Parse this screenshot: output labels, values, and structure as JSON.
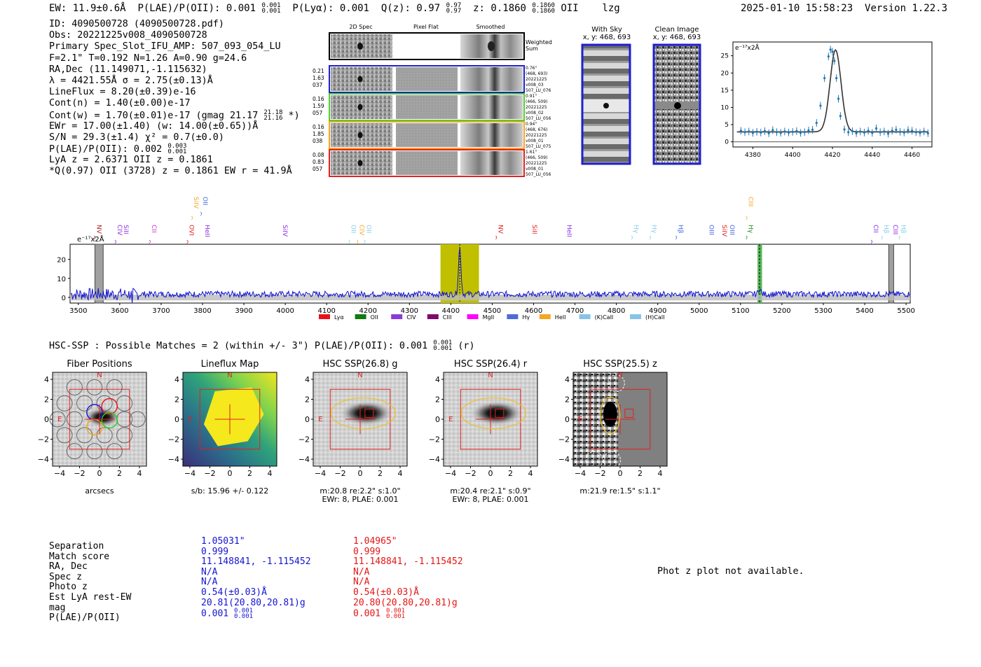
{
  "header": {
    "ew": "EW: 11.9±0.6Å",
    "plae_label": "P(LAE)/P(OII): 0.001",
    "plae_hi": "0.001",
    "plae_lo": "0.001",
    "plya": "P(Lyα): 0.001",
    "qz_label": "Q(z): 0.97",
    "qz_hi": "0.97",
    "qz_lo": "0.97",
    "z_label": "z: 0.1860",
    "z_hi": "0.1860",
    "z_lo": "0.1860",
    "line": "OII",
    "user": "lzg",
    "timestamp": "2025-01-10 15:58:23",
    "version": "Version 1.22.3"
  },
  "info": {
    "lines": [
      "ID: 4090500728 (4090500728.pdf)",
      "Obs: 20221225v008_4090500728",
      "Primary Spec_Slot_IFU_AMP: 507_093_054_LU",
      "F=2.1\"  T=0.192  N=1.26  A=0.90  g=24.6",
      "RA,Dec (11.149071,-1.115632)",
      "λ = 4421.55Å  σ = 2.75(±0.13)Å",
      "LineFlux = 8.20(±0.39)e-16",
      "Cont(n) = 1.40(±0.00)e-17"
    ],
    "contw": "Cont(w) = 1.70(±0.01)e-17 (gmag 21.17",
    "contw_hi": "21.18",
    "contw_lo": "21.16",
    "contw_end": "*)",
    "ewr": "EWr = 17.00(±1.40) (w: 14.00(±0.65))Å",
    "sn": "S/N = 29.3(±1.4)  χ² = 0.7(±0.0)",
    "plae": "P(LAE)/P(OII): 0.002",
    "plae_hi": "0.003",
    "plae_lo": "0.001",
    "lya": "LyA z = 2.6371  OII z = 0.1861",
    "q": "*Q(0.97) OII (3728) z = 0.1861  EW r = 41.9Å"
  },
  "stamps": {
    "col_titles": [
      "2D Spec",
      "Pixel Flat",
      "Smoothed"
    ],
    "weighted_sum": [
      "Weighted",
      "Sum"
    ],
    "rows": [
      {
        "left": [
          "0.21",
          "1.63",
          "037"
        ],
        "right": [
          "0.76\"",
          "(468, 693)",
          "20221225",
          "v008_03",
          "507_LU_076"
        ],
        "color": "#1f1fd0"
      },
      {
        "left": [
          "0.16",
          "1.59",
          "057"
        ],
        "right": [
          "0.91\"",
          "(466, 509)",
          "20221225",
          "v008_02",
          "507_LU_056"
        ],
        "color": "#4fd02a"
      },
      {
        "left": [
          "0.16",
          "1.85",
          "038"
        ],
        "right": [
          "0.94\"",
          "(468, 676)",
          "20221225",
          "v008_01",
          "507_LU_075"
        ],
        "color": "#f5a623"
      },
      {
        "left": [
          "0.08",
          "0.83",
          "057"
        ],
        "right": [
          "1.61\"",
          "(466, 509)",
          "20221225",
          "v008_01",
          "507_LU_056"
        ],
        "color": "#e02020"
      }
    ]
  },
  "sky_panels": [
    {
      "title": "With Sky",
      "coords": "x, y: 468, 693"
    },
    {
      "title": "Clean Image",
      "coords": "x, y: 468, 693"
    }
  ],
  "line_fit": {
    "ylabel": "e⁻¹⁷x2Å",
    "xticks": [
      "4380",
      "4400",
      "4420",
      "4440",
      "4460"
    ],
    "yticks": [
      "0",
      "5",
      "10",
      "15",
      "20",
      "25"
    ]
  },
  "chart_data": [
    {
      "type": "line",
      "title": "",
      "xlabel": "",
      "ylabel": "e⁻¹⁷x2Å",
      "xlim": [
        4370,
        4470
      ],
      "ylim": [
        -1.5,
        29
      ],
      "series": [
        {
          "name": "",
          "x": [
            4374,
            4376,
            4378,
            4380,
            4382,
            4384,
            4386,
            4388,
            4390,
            4392,
            4394,
            4396,
            4398,
            4400,
            4402,
            4404,
            4406,
            4408,
            4410,
            4412,
            4414,
            4416,
            4418,
            4419,
            4420,
            4421,
            4422,
            4423,
            4424,
            4426,
            4428,
            4430,
            4432,
            4434,
            4436,
            4438,
            4440,
            4442,
            4444,
            4446,
            4448,
            4450,
            4452,
            4454,
            4456,
            4458,
            4460,
            4462,
            4464,
            4466,
            4468
          ],
          "y": [
            3.2,
            2.8,
            3.0,
            2.6,
            2.9,
            2.7,
            3.1,
            2.5,
            3.4,
            2.8,
            2.6,
            3.0,
            2.7,
            2.9,
            3.1,
            2.6,
            2.8,
            3.3,
            3.5,
            5.5,
            10.5,
            18.5,
            24.8,
            26.8,
            26.2,
            23.5,
            18.5,
            12.5,
            7.5,
            3.6,
            2.8,
            3.1,
            2.5,
            3.0,
            2.7,
            3.2,
            2.6,
            3.9,
            2.8,
            3.0,
            2.4,
            3.2,
            3.5,
            2.9,
            2.7,
            3.4,
            3.2,
            2.8,
            2.6,
            3.0,
            2.5
          ]
        }
      ]
    },
    {
      "type": "line",
      "title": "",
      "xlabel": "",
      "ylabel": "e⁻¹⁷x2Å",
      "xlim": [
        3480,
        5510
      ],
      "ylim": [
        -3,
        28
      ],
      "xticks": [
        3500,
        3600,
        3700,
        3800,
        3900,
        4000,
        4100,
        4200,
        4300,
        4400,
        4500,
        4600,
        4700,
        4800,
        4900,
        5000,
        5100,
        5200,
        5300,
        5400,
        5500
      ],
      "yticks": [
        0,
        10,
        20
      ],
      "series": [
        {
          "name": "",
          "peak_x": 4421.55,
          "peak_y": 26,
          "continuum": 1.7
        },
        {
          "name": "",
          "secondary_peak_x": 5146,
          "secondary_peak_y": 4
        }
      ],
      "annotations": [
        {
          "label": "NV",
          "x": 3540,
          "color": "#b22222",
          "row": 1
        },
        {
          "label": "CIV",
          "x": 3590,
          "color": "#8a2be2",
          "row": 1
        },
        {
          "label": "SiII",
          "x": 3605,
          "color": "#8a2be2",
          "row": 1
        },
        {
          "label": "CII",
          "x": 3673,
          "color": "#cc33cc",
          "row": 1
        },
        {
          "label": "OVI",
          "x": 3764,
          "color": "#e02020",
          "row": 1
        },
        {
          "label": "HeII",
          "x": 3802,
          "color": "#8a2be2",
          "row": 1
        },
        {
          "label": "SiIV",
          "x": 3775,
          "color": "#f5a623",
          "row": 0
        },
        {
          "label": "OII",
          "x": 3797,
          "color": "#4169e1",
          "row": 0
        },
        {
          "label": "SiIV",
          "x": 3990,
          "color": "#8a2be2",
          "row": 1
        },
        {
          "label": "OII",
          "x": 4155,
          "color": "#87ceeb",
          "row": 1
        },
        {
          "label": "CIV",
          "x": 4175,
          "color": "#f5a623",
          "row": 1
        },
        {
          "label": "OII",
          "x": 4192,
          "color": "#87ceeb",
          "row": 1
        },
        {
          "label": "NV",
          "x": 4510,
          "color": "#e02020",
          "row": 1
        },
        {
          "label": "SiII",
          "x": 4592,
          "color": "#e02020",
          "row": 1
        },
        {
          "label": "HeII",
          "x": 4676,
          "color": "#8a2be2",
          "row": 1
        },
        {
          "label": "Hγ",
          "x": 4838,
          "color": "#87ceeb",
          "row": 1
        },
        {
          "label": "Hγ",
          "x": 4882,
          "color": "#87ceeb",
          "row": 1
        },
        {
          "label": "Hβ",
          "x": 4945,
          "color": "#4169e1",
          "row": 1
        },
        {
          "label": "OIII",
          "x": 5020,
          "color": "#4169e1",
          "row": 1
        },
        {
          "label": "SiIV",
          "x": 5051,
          "color": "#e02020",
          "row": 1
        },
        {
          "label": "OIII",
          "x": 5070,
          "color": "#4169e1",
          "row": 1
        },
        {
          "label": "Hγ",
          "x": 5115,
          "color": "#228b22",
          "row": 1
        },
        {
          "label": "CIII",
          "x": 5115,
          "color": "#f5a623",
          "row": 0
        },
        {
          "label": "CII",
          "x": 5417,
          "color": "#8a2be2",
          "row": 1
        },
        {
          "label": "Hβ",
          "x": 5442,
          "color": "#87ceeb",
          "row": 1
        },
        {
          "label": "CIII",
          "x": 5464,
          "color": "#8a2be2",
          "row": 1
        },
        {
          "label": "Hβ",
          "x": 5484,
          "color": "#87ceeb",
          "row": 1
        }
      ]
    }
  ],
  "spectrum": {
    "ylabel": "e⁻¹⁷x2Å",
    "xticks": [
      "3500",
      "3600",
      "3700",
      "3800",
      "3900",
      "4000",
      "4100",
      "4200",
      "4300",
      "4400",
      "4500",
      "4600",
      "4700",
      "4800",
      "4900",
      "5000",
      "5100",
      "5200",
      "5300",
      "5400",
      "5500"
    ],
    "yticks": [
      "0",
      "10",
      "20"
    ],
    "legend": [
      {
        "label": "Lyα",
        "color": "#e8121b"
      },
      {
        "label": "OII",
        "color": "#117a11"
      },
      {
        "label": "CIV",
        "color": "#8a3cd6"
      },
      {
        "label": "CIII",
        "color": "#7e0b6e"
      },
      {
        "label": "MgII",
        "color": "#ff00ff"
      },
      {
        "label": "Hγ",
        "color": "#4f6bd8"
      },
      {
        "label": "HeII",
        "color": "#f5a623"
      },
      {
        "label": "(K)CaII",
        "color": "#87c3e8"
      },
      {
        "label": "(H)CaII",
        "color": "#87c3e8"
      }
    ]
  },
  "hsc": {
    "title": "HSC-SSP : Possible Matches = 2 (within +/- 3\")  P(LAE)/P(OII): 0.001",
    "plae_hi": "0.001",
    "plae_lo": "0.001",
    "band": "(r)"
  },
  "cutouts": [
    {
      "title": "Fiber Positions",
      "lbl1": "arcsecs",
      "lbl2": ""
    },
    {
      "title": "Lineflux Map",
      "lbl1": "s/b: 15.96 +/- 0.122",
      "lbl2": ""
    },
    {
      "title": "HSC SSP(26.8) g",
      "lbl1": "m:20.8  re:2.2\"  s:1.0\"",
      "lbl2": "EWr: 8, PLAE: 0.001"
    },
    {
      "title": "HSC SSP(26.4) r",
      "lbl1": "m:20.4  re:2.1\"  s:0.9\"",
      "lbl2": "EWr: 8, PLAE: 0.001"
    },
    {
      "title": "HSC SSP(25.5) z",
      "lbl1": "m:21.9  re:1.5\"  s:1.1\"",
      "lbl2": ""
    }
  ],
  "cutout_axes": {
    "ticks": [
      "4",
      "2",
      "0",
      "−2",
      "−4"
    ],
    "xticks": [
      "−4",
      "−2",
      "0",
      "2",
      "4"
    ],
    "n": "N",
    "e": "E"
  },
  "matches": {
    "labels": [
      "Separation",
      "Match score",
      "RA, Dec",
      "Spec z",
      "Photo z",
      "Est LyA rest-EW",
      "mag",
      "P(LAE)/P(OII)"
    ],
    "col1": {
      "color": "#1414d2",
      "values": [
        "1.05031\"",
        "0.999",
        "11.148841, -1.115452",
        "N/A",
        "N/A",
        "0.54(±0.03)Å",
        "20.81(20.80,20.81)g",
        "0.001"
      ],
      "plae_hi": "0.001",
      "plae_lo": "0.001"
    },
    "col2": {
      "color": "#e61414",
      "values": [
        "1.04965\"",
        "0.999",
        "11.148841, -1.115452",
        "N/A",
        "N/A",
        "0.54(±0.03)Å",
        "20.80(20.80,20.81)g",
        "0.001"
      ],
      "plae_hi": "0.001",
      "plae_lo": "0.001"
    }
  },
  "photz": "Phot z plot not available."
}
